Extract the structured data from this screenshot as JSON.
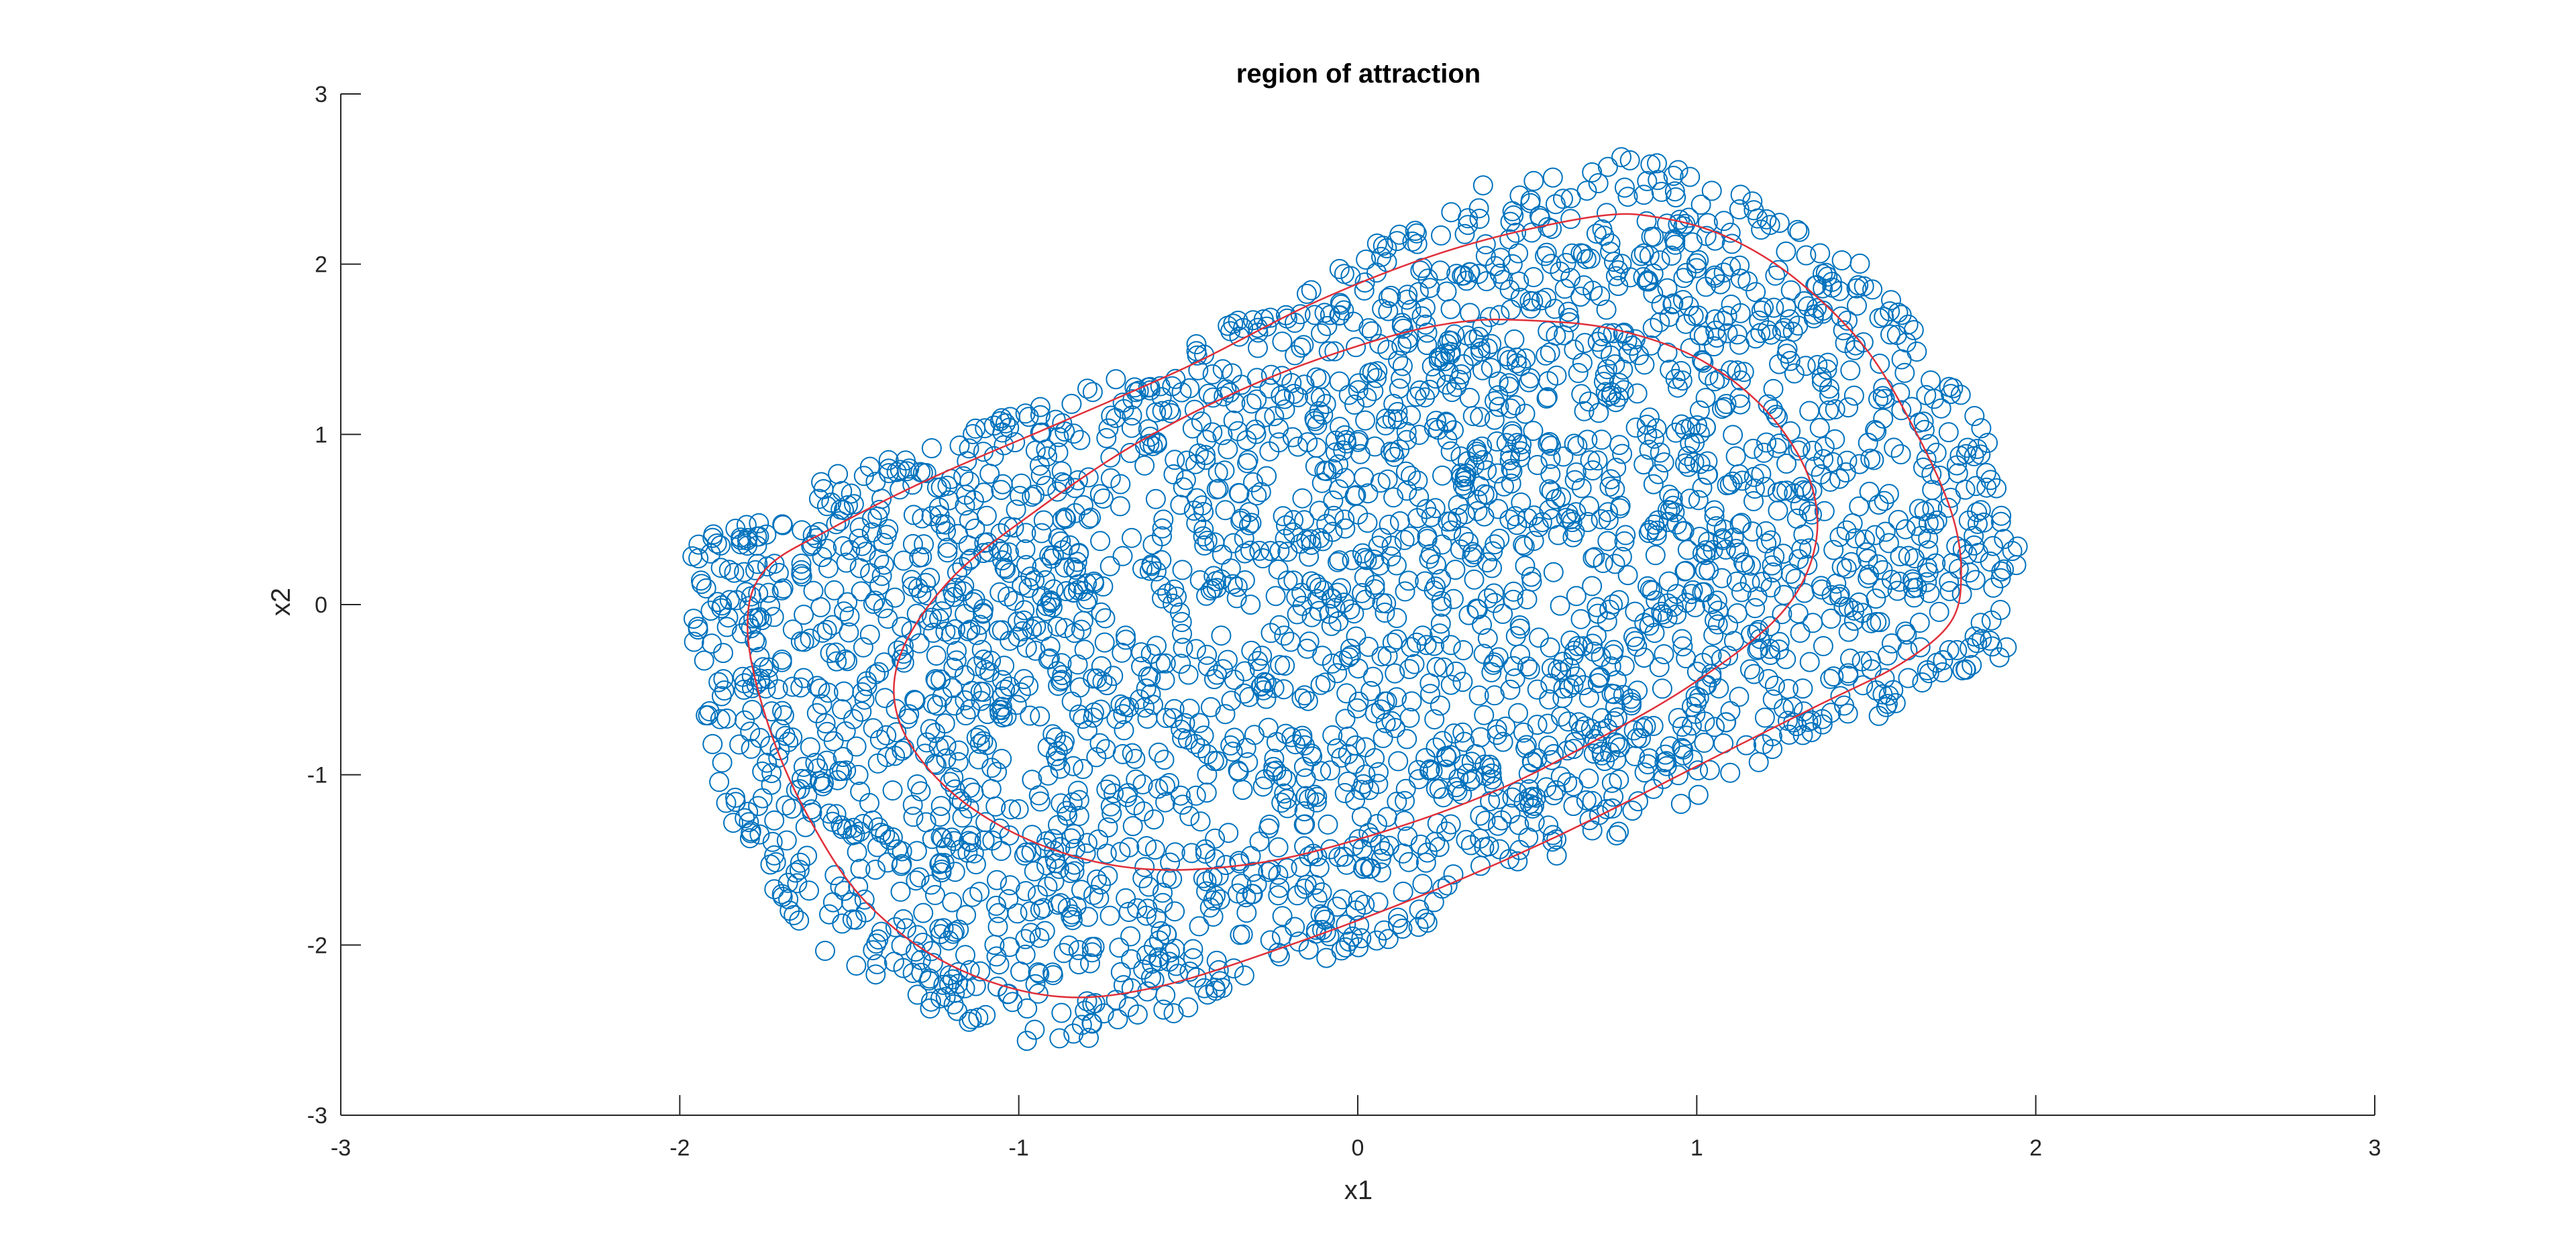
{
  "chart_data": {
    "type": "scatter",
    "title": "region of attraction",
    "xlabel": "x1",
    "ylabel": "x2",
    "xlim": [
      -3,
      3
    ],
    "ylim": [
      -3,
      3
    ],
    "xticks": [
      "-3",
      "-2",
      "-1",
      "0",
      "1",
      "2",
      "3"
    ],
    "yticks": [
      "-3",
      "-2",
      "-1",
      "0",
      "1",
      "2",
      "3"
    ],
    "grid": false,
    "legend": "none",
    "colors": {
      "markers": "#0072BD",
      "boundary": "#E0303A",
      "axis": "#262626"
    },
    "series": [
      {
        "kind": "scatter",
        "marker": "open-circle",
        "color": "#0072BD",
        "approximate_count": 3000,
        "region_boundary_samples": [
          [
            -2.0,
            0.1
          ],
          [
            -1.95,
            0.35
          ],
          [
            -1.8,
            0.55
          ],
          [
            -1.5,
            0.8
          ],
          [
            -1.2,
            1.0
          ],
          [
            -0.8,
            1.3
          ],
          [
            -0.5,
            1.55
          ],
          [
            -0.15,
            1.9
          ],
          [
            0.1,
            2.2
          ],
          [
            0.4,
            2.5
          ],
          [
            0.75,
            2.65
          ],
          [
            1.0,
            2.55
          ],
          [
            1.25,
            2.3
          ],
          [
            1.5,
            2.0
          ],
          [
            1.65,
            1.6
          ],
          [
            1.8,
            1.2
          ],
          [
            1.92,
            0.7
          ],
          [
            1.98,
            0.25
          ],
          [
            1.95,
            -0.2
          ],
          [
            1.85,
            -0.45
          ],
          [
            1.6,
            -0.62
          ],
          [
            1.35,
            -0.8
          ],
          [
            1.1,
            -1.05
          ],
          [
            0.85,
            -1.3
          ],
          [
            0.55,
            -1.5
          ],
          [
            0.25,
            -1.85
          ],
          [
            0.0,
            -2.05
          ],
          [
            -0.3,
            -2.2
          ],
          [
            -0.6,
            -2.45
          ],
          [
            -0.9,
            -2.62
          ],
          [
            -1.15,
            -2.5
          ],
          [
            -1.35,
            -2.3
          ],
          [
            -1.6,
            -2.0
          ],
          [
            -1.8,
            -1.5
          ],
          [
            -1.9,
            -1.0
          ],
          [
            -1.95,
            -0.5
          ],
          [
            -2.0,
            -0.2
          ]
        ]
      },
      {
        "kind": "line",
        "color": "#E0303A",
        "name": "",
        "shape": "closed-contour",
        "points": [
          [
            0.7,
            2.28
          ],
          [
            0.9,
            2.27
          ],
          [
            1.1,
            2.15
          ],
          [
            1.3,
            1.9
          ],
          [
            1.5,
            1.5
          ],
          [
            1.65,
            1.0
          ],
          [
            1.75,
            0.55
          ],
          [
            1.78,
            0.2
          ],
          [
            1.75,
            -0.1
          ],
          [
            1.6,
            -0.35
          ],
          [
            1.35,
            -0.6
          ],
          [
            1.0,
            -0.95
          ],
          [
            0.6,
            -1.35
          ],
          [
            0.2,
            -1.7
          ],
          [
            -0.2,
            -2.0
          ],
          [
            -0.6,
            -2.25
          ],
          [
            -0.9,
            -2.3
          ],
          [
            -1.2,
            -2.12
          ],
          [
            -1.45,
            -1.75
          ],
          [
            -1.62,
            -1.25
          ],
          [
            -1.74,
            -0.7
          ],
          [
            -1.8,
            -0.15
          ],
          [
            -1.75,
            0.2
          ],
          [
            -1.55,
            0.45
          ],
          [
            -1.25,
            0.75
          ],
          [
            -0.9,
            1.05
          ],
          [
            -0.5,
            1.4
          ],
          [
            -0.1,
            1.8
          ],
          [
            0.3,
            2.1
          ],
          [
            0.7,
            2.28
          ]
        ]
      },
      {
        "kind": "line",
        "color": "#E0303A",
        "name": "",
        "shape": "closed-contour",
        "points": [
          [
            0.5,
            1.67
          ],
          [
            0.75,
            1.62
          ],
          [
            1.0,
            1.45
          ],
          [
            1.2,
            1.15
          ],
          [
            1.33,
            0.75
          ],
          [
            1.35,
            0.35
          ],
          [
            1.25,
            -0.05
          ],
          [
            1.0,
            -0.45
          ],
          [
            0.7,
            -0.8
          ],
          [
            0.4,
            -1.1
          ],
          [
            0.05,
            -1.35
          ],
          [
            -0.3,
            -1.52
          ],
          [
            -0.65,
            -1.55
          ],
          [
            -0.95,
            -1.4
          ],
          [
            -1.2,
            -1.1
          ],
          [
            -1.35,
            -0.7
          ],
          [
            -1.35,
            -0.3
          ],
          [
            -1.2,
            0.15
          ],
          [
            -0.95,
            0.55
          ],
          [
            -0.65,
            0.95
          ],
          [
            -0.3,
            1.3
          ],
          [
            0.05,
            1.55
          ],
          [
            0.3,
            1.66
          ],
          [
            0.5,
            1.67
          ]
        ]
      }
    ]
  }
}
